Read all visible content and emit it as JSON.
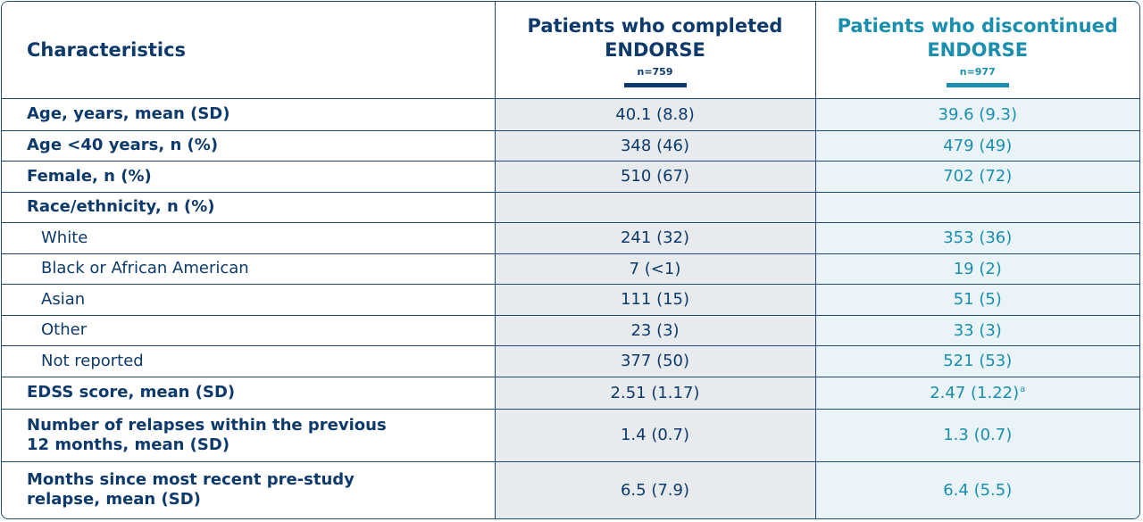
{
  "header": {
    "characteristics": "Characteristics",
    "group1": {
      "title_line1": "Patients who completed",
      "title_line2": "ENDORSE",
      "n": "n=759",
      "color": "#0d3a6b"
    },
    "group2": {
      "title_line1": "Patients who discontinued",
      "title_line2": "ENDORSE",
      "n": "n=977",
      "color": "#1a8fad"
    }
  },
  "rows": [
    {
      "label": "Age, years, mean (SD)",
      "completed": "40.1 (8.8)",
      "discontinued": "39.6 (9.3)"
    },
    {
      "label": "Age <40 years, n (%)",
      "completed": "348 (46)",
      "discontinued": "479 (49)"
    },
    {
      "label": "Female, n (%)",
      "completed": "510 (67)",
      "discontinued": "702 (72)"
    },
    {
      "label": "Race/ethnicity, n (%)",
      "completed": "",
      "discontinued": ""
    },
    {
      "label": "White",
      "completed": "241 (32)",
      "discontinued": "353 (36)"
    },
    {
      "label": "Black or African American",
      "completed": "7 (<1)",
      "discontinued": "19 (2)"
    },
    {
      "label": "Asian",
      "completed": "111 (15)",
      "discontinued": "51 (5)"
    },
    {
      "label": "Other",
      "completed": "23 (3)",
      "discontinued": "33 (3)"
    },
    {
      "label": "Not reported",
      "completed": "377 (50)",
      "discontinued": "521 (53)"
    },
    {
      "label": "EDSS score, mean (SD)",
      "completed": "2.51 (1.17)",
      "discontinued": "2.47 (1.22)",
      "discontinued_footnote": "a"
    },
    {
      "label_line1": "Number of relapses within the previous",
      "label_line2": "12 months, mean (SD)",
      "completed": "1.4 (0.7)",
      "discontinued": "1.3 (0.7)"
    },
    {
      "label_line1": "Months since most recent pre-study",
      "label_line2": "relapse, mean (SD)",
      "completed": "6.5 (7.9)",
      "discontinued": "6.4 (5.5)"
    }
  ]
}
